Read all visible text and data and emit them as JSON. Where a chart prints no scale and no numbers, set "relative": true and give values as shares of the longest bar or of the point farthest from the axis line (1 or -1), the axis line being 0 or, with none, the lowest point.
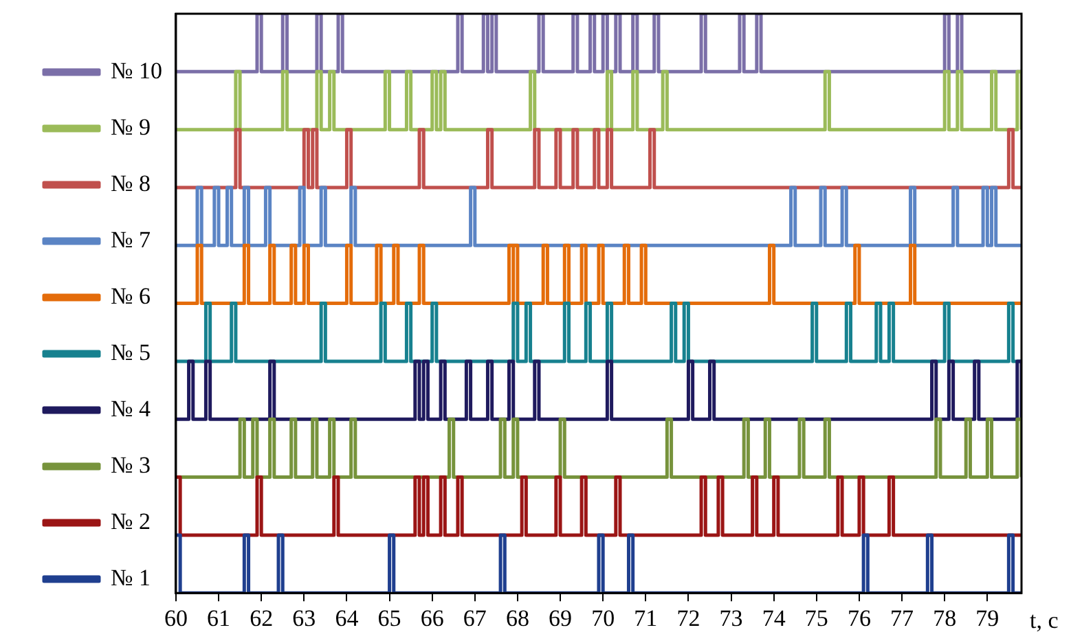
{
  "chart_data": {
    "type": "step",
    "xlabel": "t, c",
    "relative": true,
    "legend": "left",
    "grid": false,
    "marker": "none",
    "xlim": [
      60,
      79.8
    ],
    "xticks": [
      60,
      61,
      62,
      63,
      64,
      65,
      66,
      67,
      68,
      69,
      70,
      71,
      72,
      73,
      74,
      75,
      76,
      77,
      78,
      79
    ],
    "series": [
      {
        "name": "№ 1",
        "color": "#1f3f8f",
        "x": [
          60,
          60.1,
          61.6,
          61.7,
          62.4,
          62.5,
          65,
          65.1,
          67.6,
          67.7,
          69.9,
          70,
          70.6,
          70.7,
          76.1,
          76.2,
          77.6,
          77.7,
          79.5,
          79.6,
          79.8
        ],
        "values": [
          0.1,
          0,
          0.1,
          0,
          0.1,
          0,
          0.1,
          0,
          0.1,
          0,
          0.1,
          0,
          0.1,
          0,
          0.1,
          0,
          0.1,
          0,
          0.1,
          0,
          0
        ]
      },
      {
        "name": "№ 2",
        "color": "#9b1515",
        "x": [
          60,
          60.1,
          61.9,
          62,
          63.7,
          63.8,
          65.6,
          65.7,
          65.8,
          65.9,
          66.2,
          66.3,
          66.6,
          66.7,
          68.1,
          68.2,
          68.9,
          69,
          69.5,
          69.6,
          70.3,
          70.4,
          72.3,
          72.4,
          72.7,
          72.8,
          73.5,
          73.6,
          74,
          74.1,
          75.5,
          75.6,
          76,
          76.1,
          76.7,
          76.8,
          79.8
        ],
        "values": [
          0.2,
          0.1,
          0.2,
          0.1,
          0.2,
          0.1,
          0.2,
          0.1,
          0.2,
          0.1,
          0.2,
          0.1,
          0.2,
          0.1,
          0.2,
          0.1,
          0.2,
          0.1,
          0.2,
          0.1,
          0.2,
          0.1,
          0.2,
          0.1,
          0.2,
          0.1,
          0.2,
          0.1,
          0.2,
          0.1,
          0.2,
          0.1,
          0.2,
          0.1,
          0.2,
          0.1,
          0.1
        ]
      },
      {
        "name": "№ 3",
        "color": "#77933c",
        "x": [
          60,
          61.5,
          61.6,
          61.8,
          61.9,
          62.2,
          62.3,
          62.7,
          62.8,
          63.2,
          63.3,
          63.6,
          63.7,
          64.1,
          64.2,
          66.4,
          66.5,
          67.6,
          67.7,
          67.9,
          68,
          69,
          69.1,
          71.5,
          71.6,
          73.3,
          73.4,
          73.8,
          73.9,
          74.6,
          74.7,
          75.2,
          75.3,
          77.8,
          77.9,
          78.5,
          78.6,
          79,
          79.1,
          79.7,
          79.8
        ],
        "values": [
          0.2,
          0.3,
          0.2,
          0.3,
          0.2,
          0.3,
          0.2,
          0.3,
          0.2,
          0.3,
          0.2,
          0.3,
          0.2,
          0.3,
          0.2,
          0.3,
          0.2,
          0.3,
          0.2,
          0.3,
          0.2,
          0.3,
          0.2,
          0.3,
          0.2,
          0.3,
          0.2,
          0.3,
          0.2,
          0.3,
          0.2,
          0.3,
          0.2,
          0.3,
          0.2,
          0.3,
          0.2,
          0.3,
          0.2,
          0.3,
          0.2
        ]
      },
      {
        "name": "№ 4",
        "color": "#1f1a5e",
        "x": [
          60,
          60.3,
          60.4,
          60.7,
          60.8,
          62.2,
          62.3,
          65.6,
          65.7,
          65.8,
          65.9,
          66.2,
          66.3,
          66.8,
          66.9,
          67.3,
          67.4,
          67.8,
          67.9,
          68.4,
          68.5,
          70.1,
          70.2,
          72,
          72.1,
          72.5,
          72.6,
          77.7,
          77.8,
          78.1,
          78.2,
          78.7,
          78.8,
          79.7,
          79.8
        ],
        "values": [
          0.3,
          0.4,
          0.3,
          0.4,
          0.3,
          0.4,
          0.3,
          0.4,
          0.3,
          0.4,
          0.3,
          0.4,
          0.3,
          0.4,
          0.3,
          0.4,
          0.3,
          0.4,
          0.3,
          0.4,
          0.3,
          0.4,
          0.3,
          0.4,
          0.3,
          0.4,
          0.3,
          0.4,
          0.3,
          0.4,
          0.3,
          0.4,
          0.3,
          0.4,
          0.3
        ]
      },
      {
        "name": "№ 5",
        "color": "#17818f",
        "x": [
          60,
          60.7,
          60.8,
          61.3,
          61.4,
          63.4,
          63.5,
          64.8,
          64.9,
          65.4,
          65.5,
          66,
          66.1,
          67.9,
          68,
          68.2,
          68.3,
          69.1,
          69.2,
          69.6,
          69.7,
          70.1,
          70.2,
          71.6,
          71.7,
          71.9,
          72,
          74.9,
          75,
          75.7,
          75.8,
          76.4,
          76.5,
          76.7,
          76.8,
          78,
          78.1,
          79.5,
          79.6,
          79.8
        ],
        "values": [
          0.4,
          0.5,
          0.4,
          0.5,
          0.4,
          0.5,
          0.4,
          0.5,
          0.4,
          0.5,
          0.4,
          0.5,
          0.4,
          0.5,
          0.4,
          0.5,
          0.4,
          0.5,
          0.4,
          0.5,
          0.4,
          0.5,
          0.4,
          0.5,
          0.4,
          0.5,
          0.4,
          0.5,
          0.4,
          0.5,
          0.4,
          0.5,
          0.4,
          0.5,
          0.4,
          0.5,
          0.4,
          0.5,
          0.4,
          0.4
        ]
      },
      {
        "name": "№ 6",
        "color": "#e46c0a",
        "x": [
          60,
          60.5,
          60.6,
          61.6,
          61.7,
          62.2,
          62.3,
          62.7,
          62.8,
          63,
          63.1,
          64,
          64.1,
          64.7,
          64.8,
          65.1,
          65.2,
          65.7,
          65.8,
          67.8,
          67.9,
          67.9,
          68,
          68.6,
          68.7,
          69.1,
          69.2,
          69.5,
          69.6,
          69.9,
          70,
          70.5,
          70.6,
          70.9,
          71,
          73.9,
          74,
          75.9,
          76,
          77.2,
          77.3,
          79.8
        ],
        "values": [
          0.5,
          0.6,
          0.5,
          0.6,
          0.5,
          0.6,
          0.5,
          0.6,
          0.5,
          0.6,
          0.5,
          0.6,
          0.5,
          0.6,
          0.5,
          0.6,
          0.5,
          0.6,
          0.5,
          0.6,
          0.5,
          0.6,
          0.5,
          0.6,
          0.5,
          0.6,
          0.5,
          0.6,
          0.5,
          0.6,
          0.5,
          0.6,
          0.5,
          0.6,
          0.5,
          0.6,
          0.5,
          0.6,
          0.5,
          0.6,
          0.5,
          0.5
        ]
      },
      {
        "name": "№ 7",
        "color": "#5b84c4",
        "x": [
          60,
          60.5,
          60.6,
          60.9,
          61,
          61.2,
          61.3,
          61.6,
          61.7,
          62.1,
          62.2,
          62.9,
          63,
          63.4,
          63.5,
          64.1,
          64.2,
          66.9,
          67,
          74.4,
          74.5,
          75.1,
          75.2,
          75.6,
          75.7,
          77.2,
          77.3,
          78.2,
          78.3,
          78.9,
          79,
          79.1,
          79.2,
          79.8
        ],
        "values": [
          0.6,
          0.7,
          0.6,
          0.7,
          0.6,
          0.7,
          0.6,
          0.7,
          0.6,
          0.7,
          0.6,
          0.7,
          0.6,
          0.7,
          0.6,
          0.7,
          0.6,
          0.7,
          0.6,
          0.7,
          0.6,
          0.7,
          0.6,
          0.7,
          0.6,
          0.7,
          0.6,
          0.7,
          0.6,
          0.7,
          0.6,
          0.7,
          0.6,
          0.6
        ]
      },
      {
        "name": "№ 8",
        "color": "#c0504d",
        "x": [
          60,
          61.4,
          61.5,
          63,
          63.1,
          63.2,
          63.3,
          64,
          64.1,
          65.7,
          65.8,
          67.3,
          67.4,
          68.4,
          68.5,
          68.9,
          69,
          69.3,
          69.4,
          69.8,
          69.9,
          70.1,
          70.2,
          71.1,
          71.2,
          79.5,
          79.6,
          79.8
        ],
        "values": [
          0.7,
          0.8,
          0.7,
          0.8,
          0.7,
          0.8,
          0.7,
          0.8,
          0.7,
          0.8,
          0.7,
          0.8,
          0.7,
          0.8,
          0.7,
          0.8,
          0.7,
          0.8,
          0.7,
          0.8,
          0.7,
          0.8,
          0.7,
          0.8,
          0.7,
          0.8,
          0.7,
          0.7
        ]
      },
      {
        "name": "№ 9",
        "color": "#9bbb59",
        "x": [
          60,
          61.4,
          61.5,
          62.5,
          62.6,
          63.3,
          63.4,
          63.6,
          63.7,
          64.9,
          65,
          65.4,
          65.5,
          66,
          66.1,
          66.2,
          66.3,
          68.3,
          68.4,
          70.1,
          70.2,
          70.7,
          70.8,
          71.4,
          71.5,
          75.2,
          75.3,
          78,
          78.1,
          78.3,
          78.4,
          79.1,
          79.2,
          79.7,
          79.8
        ],
        "values": [
          0.8,
          0.9,
          0.8,
          0.9,
          0.8,
          0.9,
          0.8,
          0.9,
          0.8,
          0.9,
          0.8,
          0.9,
          0.8,
          0.9,
          0.8,
          0.9,
          0.8,
          0.9,
          0.8,
          0.9,
          0.8,
          0.9,
          0.8,
          0.9,
          0.8,
          0.9,
          0.8,
          0.9,
          0.8,
          0.9,
          0.8,
          0.9,
          0.8,
          0.9,
          0.8
        ]
      },
      {
        "name": "№ 10",
        "color": "#7b6fa8",
        "x": [
          60,
          61.9,
          62,
          62.5,
          62.6,
          63.3,
          63.4,
          63.8,
          63.9,
          66.6,
          66.7,
          67.2,
          67.3,
          67.4,
          67.5,
          68.5,
          68.6,
          69.3,
          69.4,
          69.7,
          69.8,
          70,
          70.1,
          70.3,
          70.4,
          70.7,
          70.8,
          71.2,
          71.3,
          72.3,
          72.4,
          73.2,
          73.3,
          73.6,
          73.7,
          78,
          78.1,
          78.3,
          78.4,
          79.8
        ],
        "values": [
          0.9,
          1,
          0.9,
          1,
          0.9,
          1,
          0.9,
          1,
          0.9,
          1,
          0.9,
          1,
          0.9,
          1,
          0.9,
          1,
          0.9,
          1,
          0.9,
          1,
          0.9,
          1,
          0.9,
          1,
          0.9,
          1,
          0.9,
          1,
          0.9,
          1,
          0.9,
          1,
          0.9,
          1,
          0.9,
          1,
          0.9,
          1,
          0.9,
          0.9
        ]
      }
    ]
  }
}
